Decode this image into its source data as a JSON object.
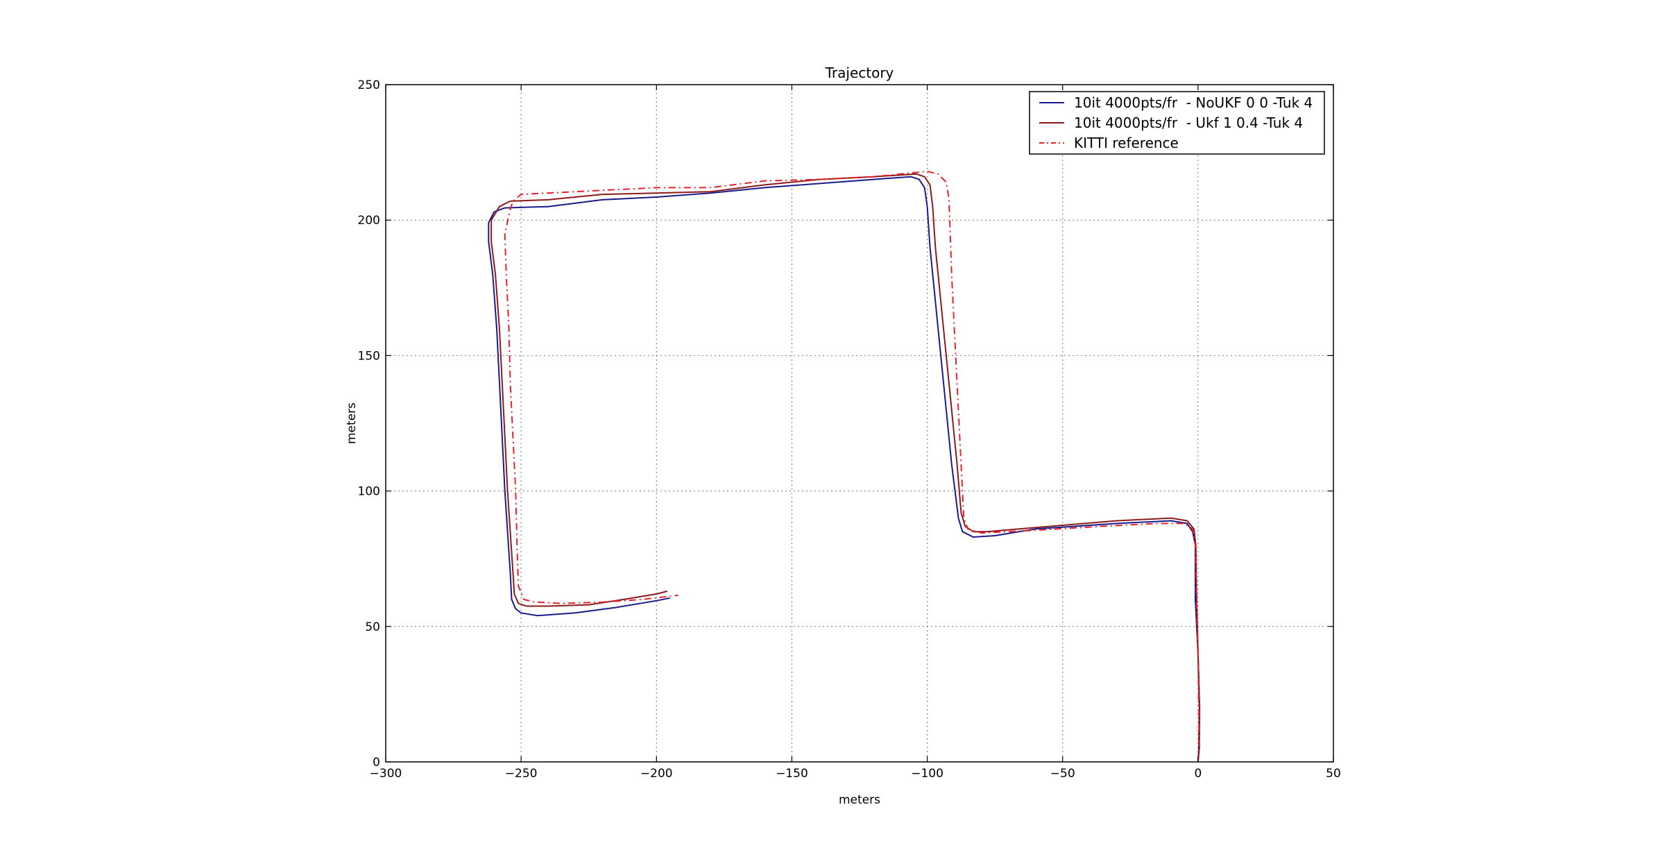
{
  "chart_data": {
    "type": "line",
    "title": "Trajectory",
    "xlabel": "meters",
    "ylabel": "meters",
    "xlim": [
      -300,
      50
    ],
    "ylim": [
      0,
      250
    ],
    "xticks": [
      -300,
      -250,
      -200,
      -150,
      -100,
      -50,
      0,
      50
    ],
    "yticks": [
      0,
      50,
      100,
      150,
      200,
      250
    ],
    "xtick_labels": [
      "−300",
      "−250",
      "−200",
      "−150",
      "−100",
      "−50",
      "0",
      "50"
    ],
    "ytick_labels": [
      "0",
      "50",
      "100",
      "150",
      "200",
      "250"
    ],
    "grid": true,
    "legend_position": "top-right",
    "series": [
      {
        "name": "10it 4000pts/fr  - NoUKF 0 0 -Tuk 4",
        "color": "#1a1a8c",
        "style": "solid",
        "points": [
          [
            0,
            0
          ],
          [
            0.3,
            5
          ],
          [
            0.5,
            20
          ],
          [
            0,
            40
          ],
          [
            -1,
            60
          ],
          [
            -1,
            80
          ],
          [
            -2,
            85
          ],
          [
            -4,
            88
          ],
          [
            -10,
            89
          ],
          [
            -30,
            88
          ],
          [
            -60,
            86
          ],
          [
            -75,
            83.5
          ],
          [
            -83,
            83
          ],
          [
            -87,
            85
          ],
          [
            -88.5,
            90
          ],
          [
            -91,
            110
          ],
          [
            -93,
            130
          ],
          [
            -95,
            150
          ],
          [
            -97,
            170
          ],
          [
            -99,
            190
          ],
          [
            -100,
            205
          ],
          [
            -101,
            212
          ],
          [
            -103,
            215
          ],
          [
            -106,
            216
          ],
          [
            -120,
            215
          ],
          [
            -140,
            213.5
          ],
          [
            -160,
            212
          ],
          [
            -180,
            210
          ],
          [
            -200,
            208.5
          ],
          [
            -220,
            207.5
          ],
          [
            -240,
            205
          ],
          [
            -256,
            204.5
          ],
          [
            -260,
            203
          ],
          [
            -262,
            199
          ],
          [
            -262,
            192
          ],
          [
            -260.5,
            180
          ],
          [
            -259,
            160
          ],
          [
            -257.5,
            130
          ],
          [
            -256,
            100
          ],
          [
            -254,
            70
          ],
          [
            -253.5,
            60
          ],
          [
            -252,
            56.5
          ],
          [
            -250,
            55
          ],
          [
            -244,
            54
          ],
          [
            -230,
            55
          ],
          [
            -215,
            57
          ],
          [
            -200,
            59.5
          ],
          [
            -195,
            60.5
          ]
        ]
      },
      {
        "name": "10it 4000pts/fr  - Ukf 1 0.4 -Tuk 4",
        "color": "#8c1a1a",
        "style": "solid",
        "points": [
          [
            0,
            0
          ],
          [
            0.5,
            5
          ],
          [
            0.6,
            20
          ],
          [
            0,
            40
          ],
          [
            -0.5,
            60
          ],
          [
            -0.8,
            80
          ],
          [
            -1.5,
            86
          ],
          [
            -4,
            89
          ],
          [
            -10,
            90
          ],
          [
            -30,
            89
          ],
          [
            -60,
            86.5
          ],
          [
            -78,
            85
          ],
          [
            -83,
            85
          ],
          [
            -86,
            87
          ],
          [
            -87.5,
            92
          ],
          [
            -89,
            110
          ],
          [
            -91,
            130
          ],
          [
            -93,
            150
          ],
          [
            -95,
            170
          ],
          [
            -97,
            190
          ],
          [
            -98,
            205
          ],
          [
            -99,
            213
          ],
          [
            -101,
            216
          ],
          [
            -104,
            217
          ],
          [
            -120,
            216
          ],
          [
            -140,
            215
          ],
          [
            -160,
            213
          ],
          [
            -180,
            210.5
          ],
          [
            -200,
            210
          ],
          [
            -220,
            209.5
          ],
          [
            -240,
            207.5
          ],
          [
            -254,
            207
          ],
          [
            -258,
            205
          ],
          [
            -261,
            200
          ],
          [
            -261,
            192
          ],
          [
            -259.5,
            180
          ],
          [
            -258,
            160
          ],
          [
            -256.5,
            130
          ],
          [
            -255,
            100
          ],
          [
            -253,
            70
          ],
          [
            -252.5,
            62
          ],
          [
            -251,
            58.5
          ],
          [
            -248,
            57.5
          ],
          [
            -240,
            57.5
          ],
          [
            -225,
            58
          ],
          [
            -212,
            60
          ],
          [
            -200,
            62
          ],
          [
            -196,
            63
          ]
        ]
      },
      {
        "name": "KITTI reference",
        "color": "#e8202a",
        "style": "dashdot",
        "points": [
          [
            0,
            0
          ],
          [
            0.5,
            5
          ],
          [
            0.3,
            20
          ],
          [
            0,
            40
          ],
          [
            -0.5,
            60
          ],
          [
            -1,
            80
          ],
          [
            -2,
            86
          ],
          [
            -5,
            88
          ],
          [
            -15,
            88
          ],
          [
            -35,
            87
          ],
          [
            -60,
            85.5
          ],
          [
            -80,
            84.5
          ],
          [
            -85,
            86
          ],
          [
            -86.5,
            90
          ],
          [
            -87,
            100
          ],
          [
            -88,
            120
          ],
          [
            -89,
            140
          ],
          [
            -90,
            160
          ],
          [
            -91,
            180
          ],
          [
            -91.5,
            195
          ],
          [
            -92,
            208
          ],
          [
            -93,
            214
          ],
          [
            -96,
            217
          ],
          [
            -100,
            218
          ],
          [
            -120,
            216
          ],
          [
            -140,
            215
          ],
          [
            -160,
            214.5
          ],
          [
            -180,
            212
          ],
          [
            -200,
            212
          ],
          [
            -220,
            211
          ],
          [
            -240,
            210
          ],
          [
            -250,
            209.5
          ],
          [
            -253,
            207
          ],
          [
            -254,
            204
          ],
          [
            -256,
            195
          ],
          [
            -255.5,
            180
          ],
          [
            -254.5,
            160
          ],
          [
            -254,
            140
          ],
          [
            -253,
            120
          ],
          [
            -252,
            100
          ],
          [
            -251.5,
            80
          ],
          [
            -251,
            65
          ],
          [
            -249,
            60
          ],
          [
            -245,
            59
          ],
          [
            -235,
            58.5
          ],
          [
            -220,
            59
          ],
          [
            -205,
            60
          ],
          [
            -192,
            61.5
          ]
        ]
      }
    ]
  }
}
